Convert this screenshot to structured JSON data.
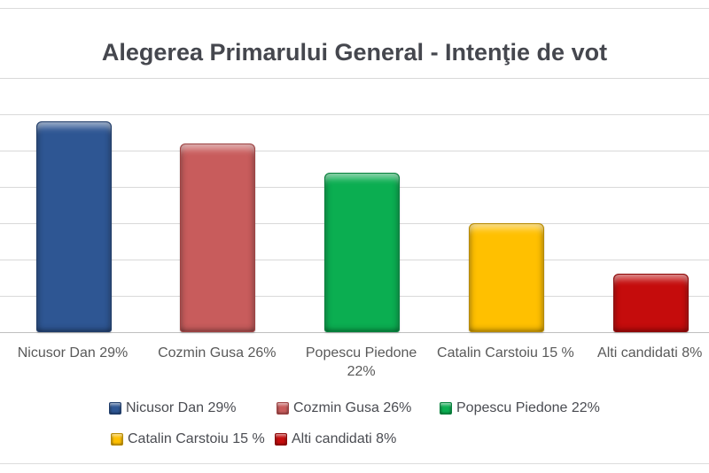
{
  "title": "Alegerea Primarului General - Intenţie de vot",
  "chart_data": {
    "type": "bar",
    "title": "Alegerea Primarului General - Intenţie de vot",
    "categories": [
      "Nicusor Dan 29%",
      "Cozmin Gusa 26%",
      "Popescu Piedone 22%",
      "Catalin Carstoiu 15 %",
      "Alti candidati 8%"
    ],
    "values": [
      29,
      26,
      22,
      15,
      8
    ],
    "unit": "%",
    "ylim": [
      0,
      35
    ],
    "grid_step": 5,
    "grid": true,
    "xlabel": "",
    "ylabel": "",
    "tick_lines": [
      [
        "Nicusor Dan 29%"
      ],
      [
        "Cozmin Gusa 26%"
      ],
      [
        "Popescu Piedone",
        "22%"
      ],
      [
        "Catalin Carstoiu 15 %"
      ],
      [
        "Alti candidati 8%"
      ]
    ],
    "legend": [
      "Nicusor Dan 29%",
      "Cozmin Gusa 26%",
      "Popescu Piedone 22%",
      "Catalin Carstoiu 15 %",
      "Alti candidati 8%"
    ],
    "legend_position": "bottom",
    "series_colors": [
      "#2E5693",
      "#C85C5C",
      "#0BAE51",
      "#FFC000",
      "#C50C0C"
    ],
    "series_border_colors": [
      "#1F3C69",
      "#9E4343",
      "#07813C",
      "#B78A00",
      "#8E0808"
    ]
  },
  "colors": {
    "title_text": "#45474E",
    "axis_text": "#595959",
    "legend_text": "#4A4C52",
    "gridline": "#D9D9D9",
    "baseline": "#BFBFBF",
    "frame_line": "#DCDCDC",
    "background": "#FFFFFF"
  }
}
